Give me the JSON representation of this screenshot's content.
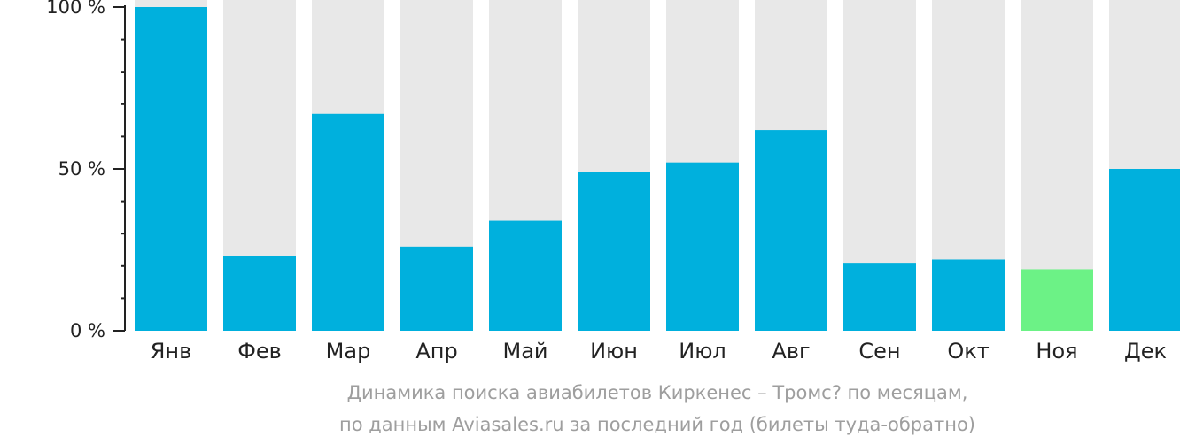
{
  "chart_data": {
    "type": "bar",
    "categories": [
      "Янв",
      "Фев",
      "Мар",
      "Апр",
      "Май",
      "Июн",
      "Июл",
      "Авг",
      "Сен",
      "Окт",
      "Ноя",
      "Дек"
    ],
    "values": [
      100,
      23,
      67,
      26,
      34,
      49,
      52,
      62,
      21,
      22,
      19,
      50
    ],
    "ylim": [
      0,
      100
    ],
    "y_ticks": [
      {
        "value": 0,
        "label": "0 %"
      },
      {
        "value": 50,
        "label": "50 %"
      },
      {
        "value": 100,
        "label": "100 %"
      }
    ],
    "minor_tick_step": 10,
    "highlight_index": 10,
    "colors": {
      "bar": "#00b0dd",
      "highlight": "#6cf286",
      "background_bar": "#e8e8e8",
      "axis": "#222222",
      "text": "#222222"
    },
    "caption": [
      "Динамика поиска авиабилетов Киркенес – Тромс? по месяцам,",
      "по данным Aviasales.ru за последний год (билеты туда-обратно)"
    ]
  }
}
